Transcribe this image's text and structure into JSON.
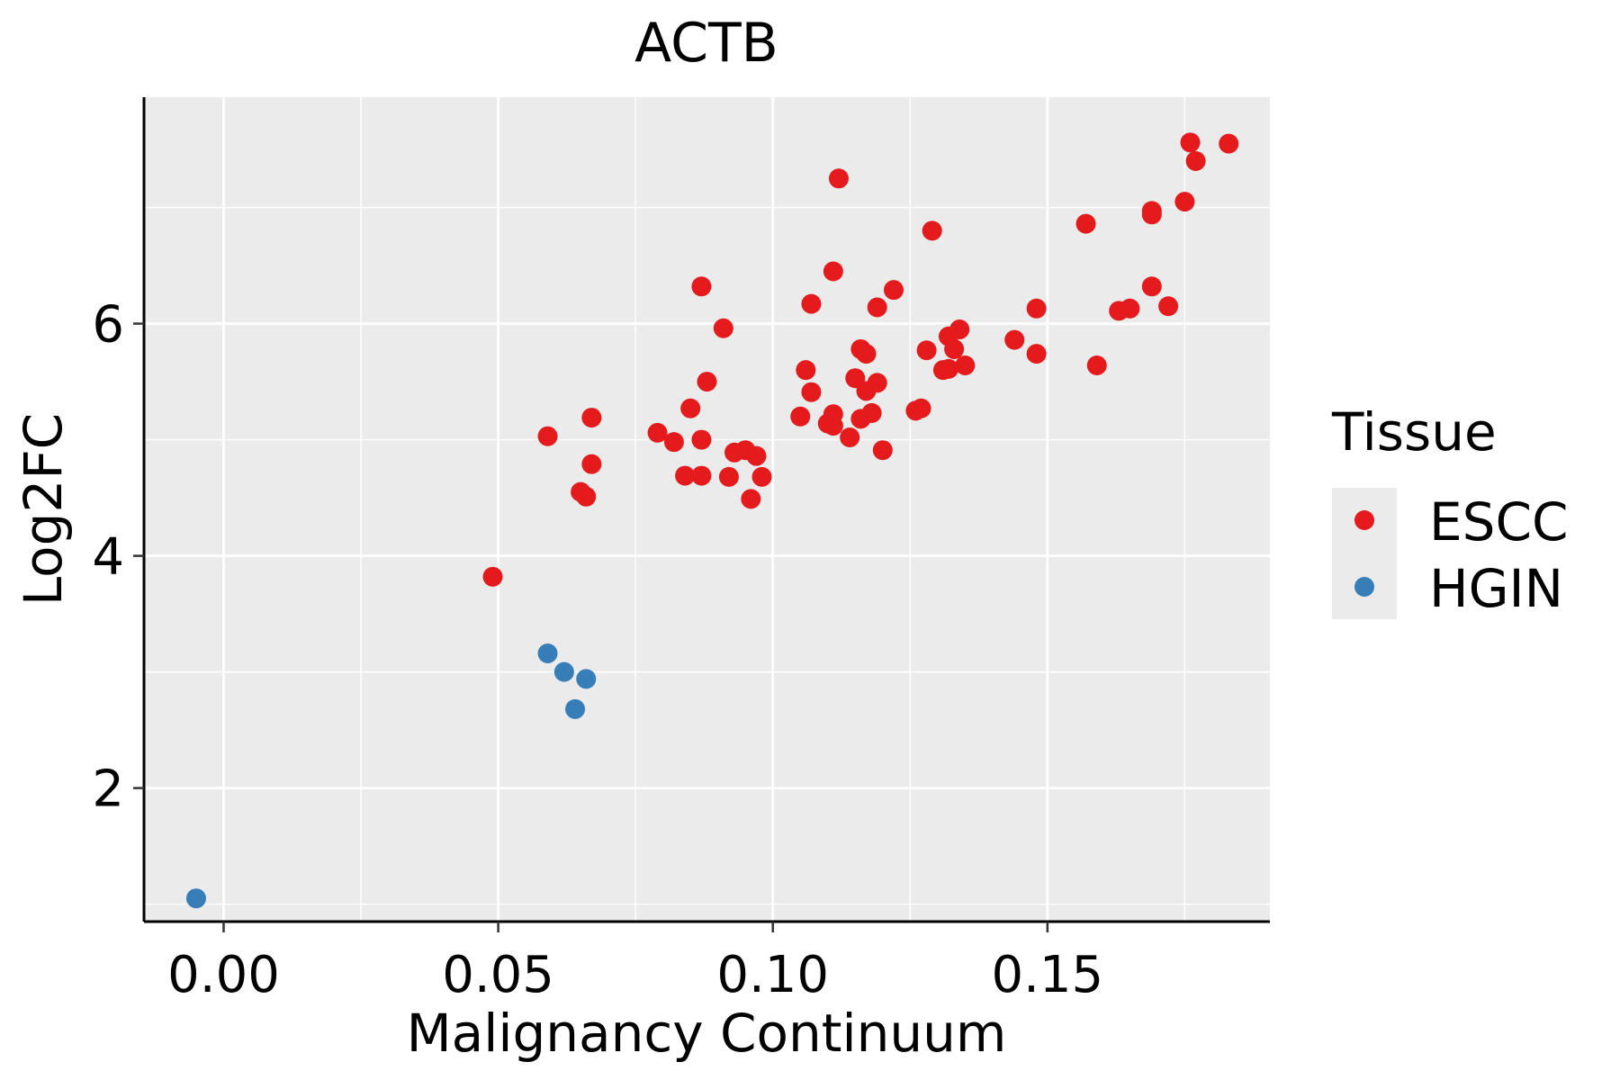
{
  "chart_data": {
    "type": "scatter",
    "title": "ACTB",
    "xlabel": "Malignancy Continuum",
    "ylabel": "Log2FC",
    "xlim": [
      -0.0145,
      0.1905
    ],
    "ylim": [
      0.85,
      7.95
    ],
    "x_ticks": [
      0.0,
      0.05,
      0.1,
      0.15
    ],
    "x_tick_labels": [
      "0.00",
      "0.05",
      "0.10",
      "0.15"
    ],
    "y_ticks": [
      2,
      4,
      6
    ],
    "y_tick_labels": [
      "2",
      "4",
      "6"
    ],
    "grid": true,
    "panel_background": "#ebebeb",
    "legend": {
      "title": "Tissue",
      "position": "right",
      "entries": [
        {
          "label": "ESCC",
          "color": "#e41a1c"
        },
        {
          "label": "HGIN",
          "color": "#377eb8"
        }
      ]
    },
    "series": [
      {
        "name": "ESCC",
        "color": "#e41a1c",
        "points": [
          [
            0.049,
            3.82
          ],
          [
            0.059,
            5.03
          ],
          [
            0.065,
            4.55
          ],
          [
            0.066,
            4.51
          ],
          [
            0.067,
            5.19
          ],
          [
            0.067,
            4.79
          ],
          [
            0.079,
            5.06
          ],
          [
            0.082,
            4.98
          ],
          [
            0.084,
            4.69
          ],
          [
            0.085,
            5.27
          ],
          [
            0.087,
            5.0
          ],
          [
            0.087,
            6.32
          ],
          [
            0.087,
            4.69
          ],
          [
            0.088,
            5.5
          ],
          [
            0.091,
            5.96
          ],
          [
            0.092,
            4.68
          ],
          [
            0.093,
            4.89
          ],
          [
            0.095,
            4.91
          ],
          [
            0.096,
            4.49
          ],
          [
            0.097,
            4.86
          ],
          [
            0.098,
            4.68
          ],
          [
            0.105,
            5.2
          ],
          [
            0.106,
            5.6
          ],
          [
            0.107,
            5.41
          ],
          [
            0.107,
            6.17
          ],
          [
            0.11,
            5.14
          ],
          [
            0.111,
            5.22
          ],
          [
            0.111,
            5.12
          ],
          [
            0.111,
            6.45
          ],
          [
            0.112,
            7.25
          ],
          [
            0.114,
            5.02
          ],
          [
            0.115,
            5.53
          ],
          [
            0.116,
            5.18
          ],
          [
            0.116,
            5.78
          ],
          [
            0.117,
            5.74
          ],
          [
            0.117,
            5.42
          ],
          [
            0.118,
            5.23
          ],
          [
            0.119,
            5.49
          ],
          [
            0.119,
            6.14
          ],
          [
            0.12,
            4.91
          ],
          [
            0.122,
            6.29
          ],
          [
            0.126,
            5.25
          ],
          [
            0.127,
            5.27
          ],
          [
            0.128,
            5.77
          ],
          [
            0.129,
            6.8
          ],
          [
            0.131,
            5.6
          ],
          [
            0.132,
            5.89
          ],
          [
            0.132,
            5.61
          ],
          [
            0.133,
            5.78
          ],
          [
            0.134,
            5.95
          ],
          [
            0.135,
            5.64
          ],
          [
            0.144,
            5.86
          ],
          [
            0.148,
            5.74
          ],
          [
            0.148,
            6.13
          ],
          [
            0.157,
            6.86
          ],
          [
            0.159,
            5.64
          ],
          [
            0.163,
            6.11
          ],
          [
            0.165,
            6.13
          ],
          [
            0.169,
            6.32
          ],
          [
            0.169,
            6.97
          ],
          [
            0.169,
            6.94
          ],
          [
            0.172,
            6.15
          ],
          [
            0.175,
            7.05
          ],
          [
            0.176,
            7.56
          ],
          [
            0.177,
            7.4
          ],
          [
            0.183,
            7.55
          ]
        ]
      },
      {
        "name": "HGIN",
        "color": "#377eb8",
        "points": [
          [
            -0.005,
            1.05
          ],
          [
            0.059,
            3.16
          ],
          [
            0.062,
            3.0
          ],
          [
            0.064,
            2.68
          ],
          [
            0.066,
            2.94
          ]
        ]
      }
    ]
  }
}
